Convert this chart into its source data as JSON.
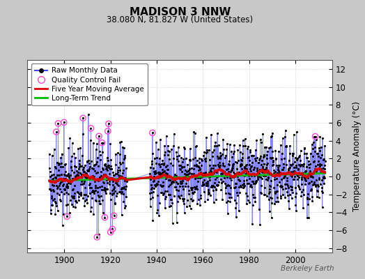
{
  "title": "MADISON 3 NNW",
  "subtitle": "38.080 N, 81.827 W (United States)",
  "ylabel": "Temperature Anomaly (°C)",
  "watermark": "Berkeley Earth",
  "xlim": [
    1884,
    2016
  ],
  "ylim": [
    -8.5,
    13
  ],
  "yticks": [
    -8,
    -6,
    -4,
    -2,
    0,
    2,
    4,
    6,
    8,
    10,
    12
  ],
  "xticks": [
    1900,
    1920,
    1940,
    1960,
    1980,
    2000
  ],
  "raw_color": "#4444ff",
  "raw_alpha": 0.65,
  "ma_color": "#dd0000",
  "trend_color": "#00bb00",
  "qc_color": "#ff44cc",
  "bg_color": "#ffffff",
  "outer_bg": "#c8c8c8",
  "seed": 42,
  "start_year": 1893,
  "end_year": 2013,
  "gap_start": 1927,
  "gap_end": 1937,
  "noise_std": 1.9,
  "trend_slope": 0.007,
  "trend_intercept": -0.1,
  "ma_window": 60,
  "qc_years": [
    1896.5,
    1897.3,
    1899.8,
    1901.2,
    1908.1,
    1911.5,
    1914.2,
    1915.0,
    1916.3,
    1917.5,
    1918.8,
    1919.2,
    1920.0,
    1920.8,
    1921.5,
    1938.2,
    2008.7
  ]
}
